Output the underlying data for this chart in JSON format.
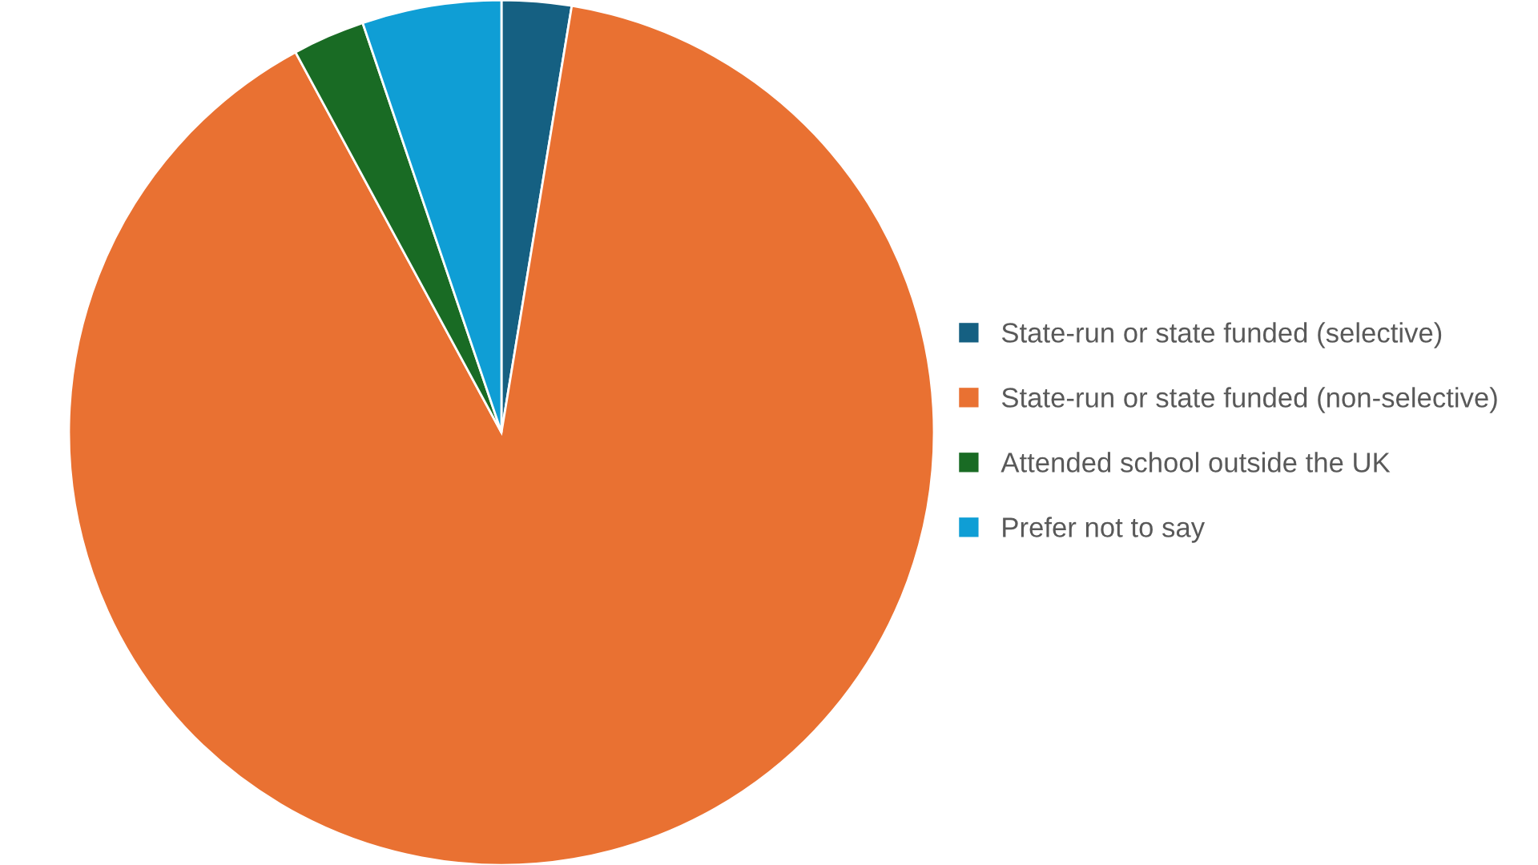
{
  "chart_data": {
    "type": "pie",
    "categories": [
      "State-run or state funded (selective)",
      "State-run or state funded (non-selective)",
      "Attended school outside the UK",
      "Prefer not to say"
    ],
    "values": [
      2.6,
      89.5,
      2.7,
      5.2
    ],
    "colors": [
      "#156082",
      "#e97132",
      "#196b24",
      "#0f9ed5"
    ],
    "legend": "right"
  }
}
